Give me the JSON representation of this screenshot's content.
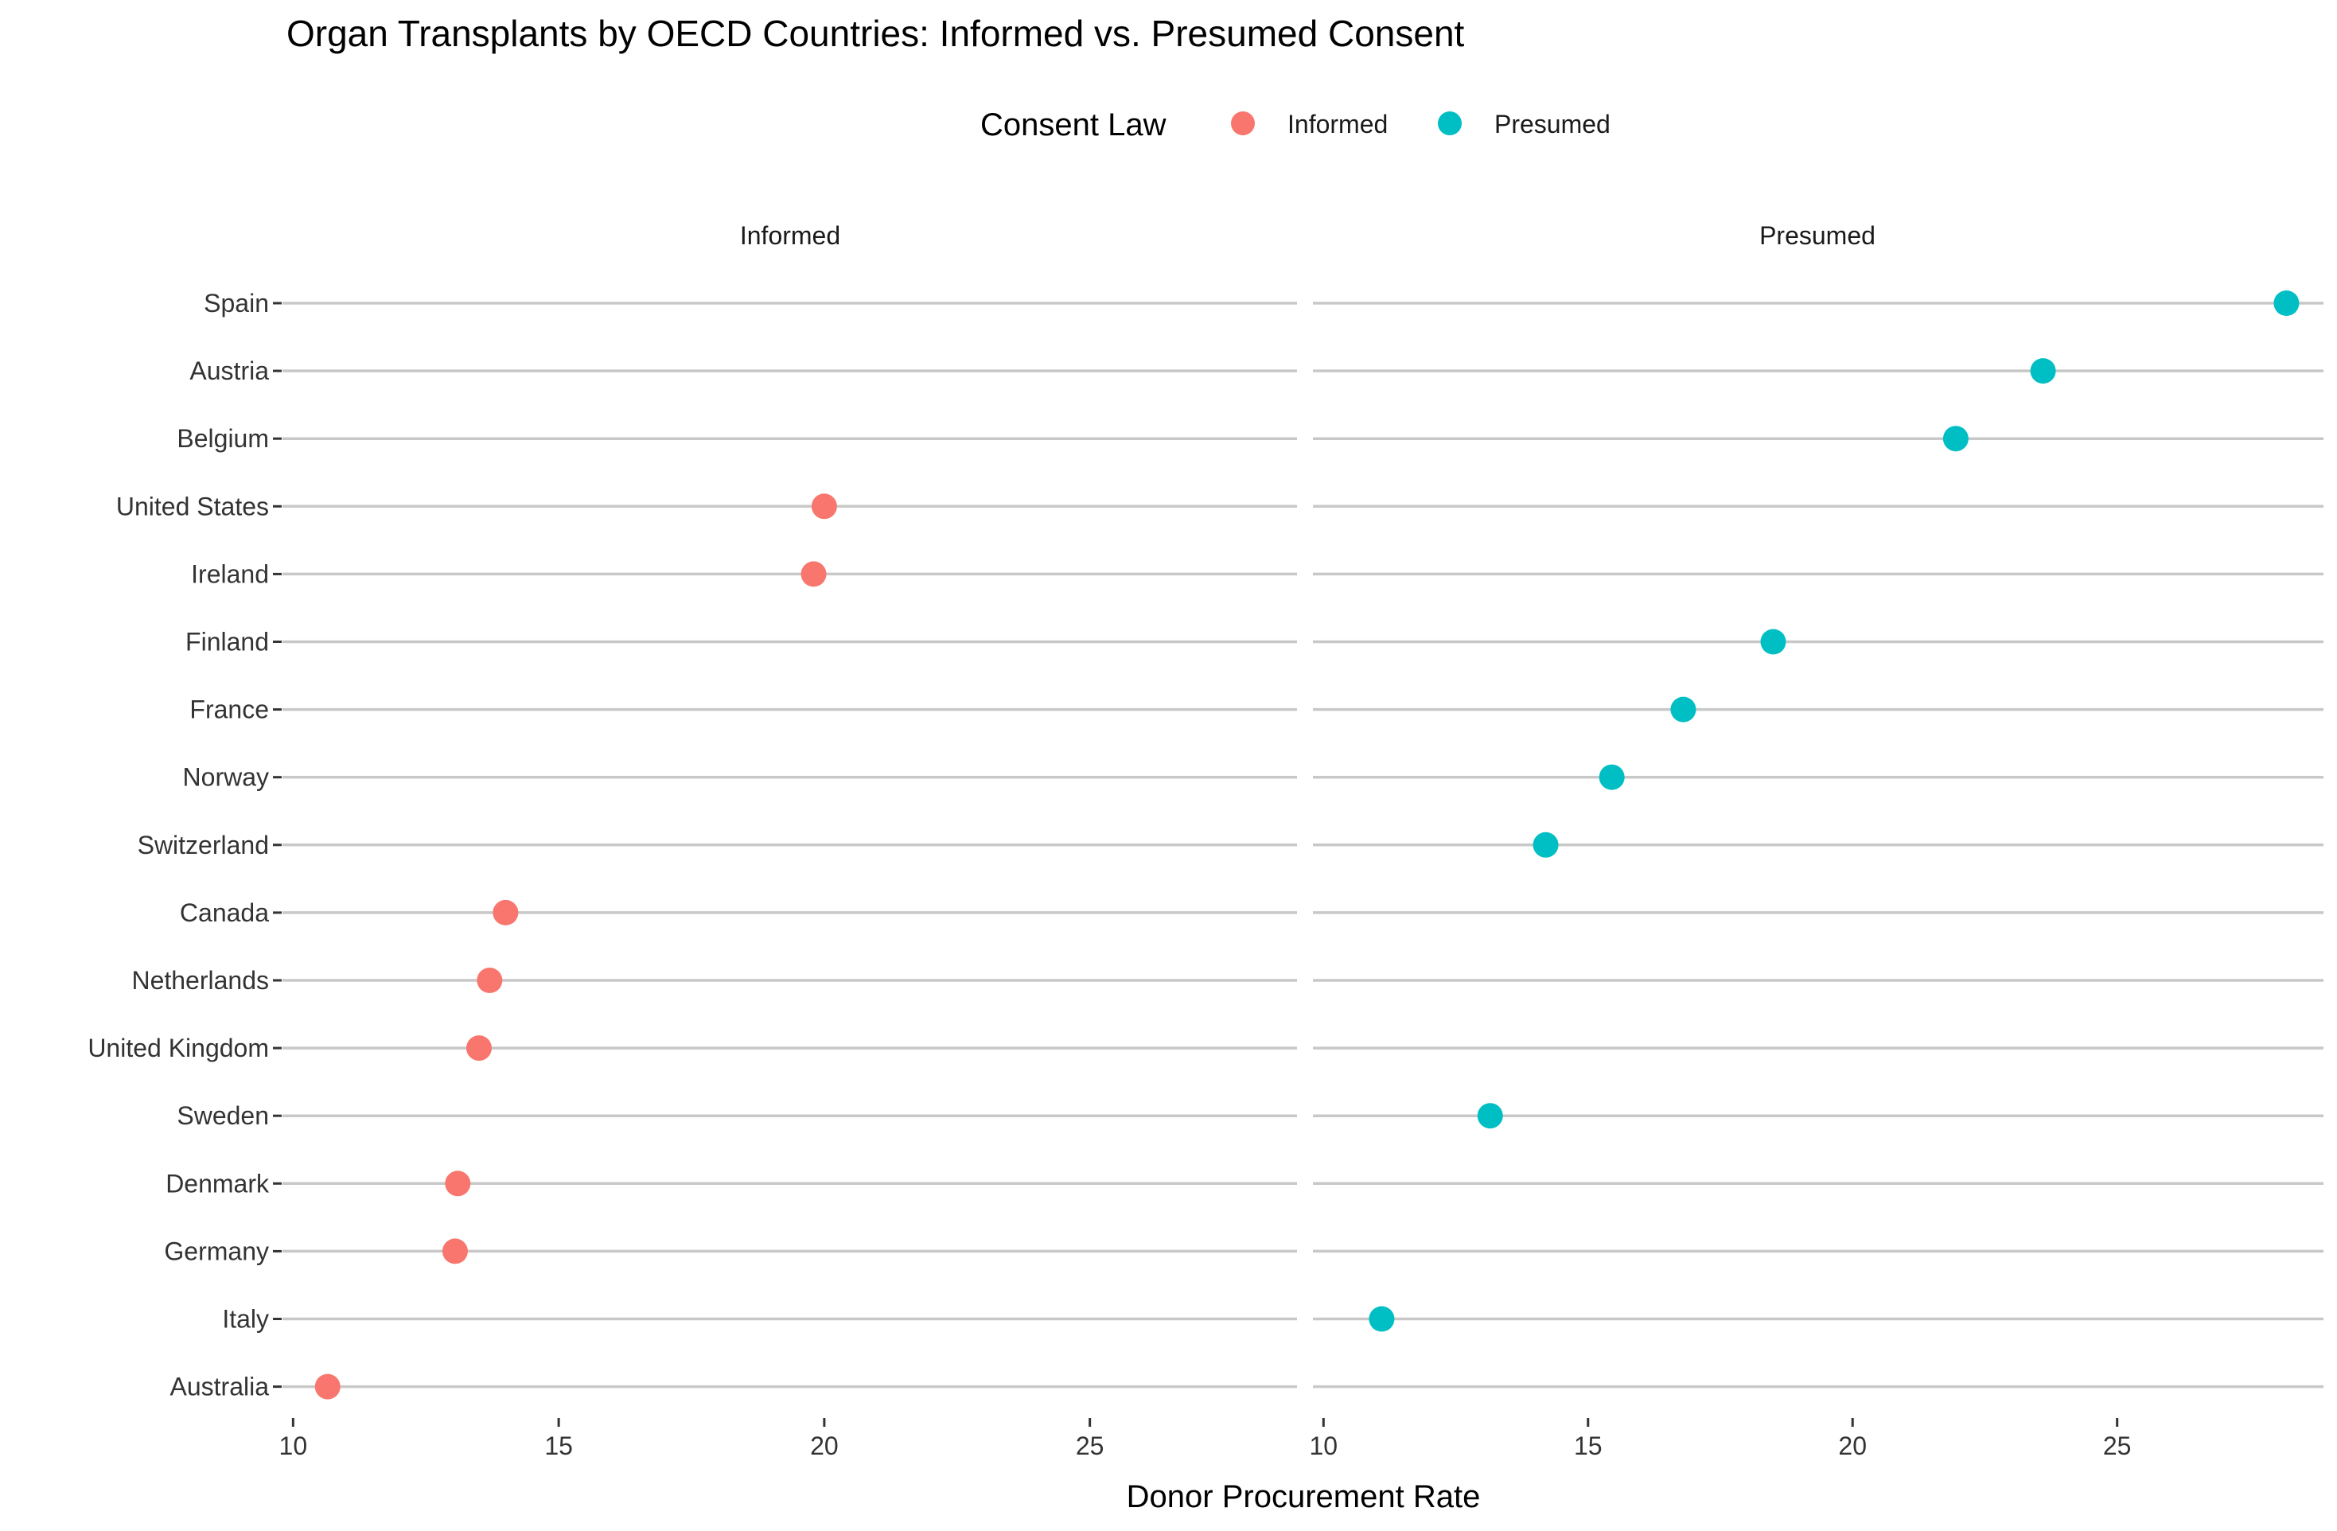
{
  "chart_data": {
    "type": "scatter",
    "title": "Organ Transplants by OECD Countries: Informed vs. Presumed Consent",
    "xlabel": "Donor Procurement Rate",
    "ylabel": "",
    "xlim": [
      9.8,
      28.9
    ],
    "x_ticks": [
      "10",
      "15",
      "20",
      "25"
    ],
    "legend": {
      "title": "Consent Law",
      "placement": "top",
      "entries": [
        {
          "label": "Informed",
          "color": "#f8766d"
        },
        {
          "label": "Presumed",
          "color": "#00bfc4"
        }
      ]
    },
    "grid": "horizontal",
    "categories": [
      "Spain",
      "Austria",
      "Belgium",
      "United States",
      "Ireland",
      "Finland",
      "France",
      "Norway",
      "Switzerland",
      "Canada",
      "Netherlands",
      "United Kingdom",
      "Sweden",
      "Denmark",
      "Germany",
      "Italy",
      "Australia"
    ],
    "panels": [
      {
        "name": "Informed",
        "color": "#f8766d",
        "points": [
          {
            "country": "United States",
            "value": 20.0
          },
          {
            "country": "Ireland",
            "value": 19.8
          },
          {
            "country": "Canada",
            "value": 14.0
          },
          {
            "country": "Netherlands",
            "value": 13.7
          },
          {
            "country": "United Kingdom",
            "value": 13.5
          },
          {
            "country": "Denmark",
            "value": 13.1
          },
          {
            "country": "Germany",
            "value": 13.05
          },
          {
            "country": "Australia",
            "value": 10.65
          }
        ]
      },
      {
        "name": "Presumed",
        "color": "#00bfc4",
        "points": [
          {
            "country": "Spain",
            "value": 28.2
          },
          {
            "country": "Austria",
            "value": 23.6
          },
          {
            "country": "Belgium",
            "value": 21.95
          },
          {
            "country": "Finland",
            "value": 18.5
          },
          {
            "country": "France",
            "value": 16.8
          },
          {
            "country": "Norway",
            "value": 15.45
          },
          {
            "country": "Switzerland",
            "value": 14.2
          },
          {
            "country": "Sweden",
            "value": 13.15
          },
          {
            "country": "Italy",
            "value": 11.1
          }
        ]
      }
    ]
  }
}
